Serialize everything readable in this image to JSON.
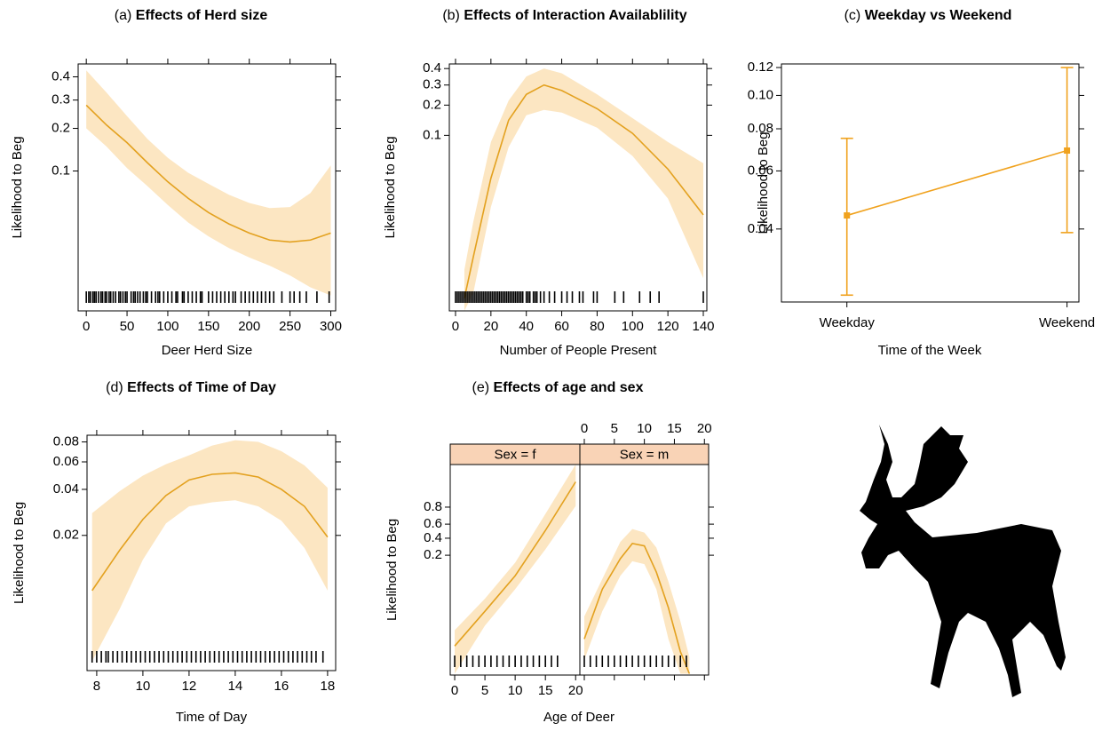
{
  "chart_data": [
    {
      "type": "line",
      "label": "(a)",
      "title": "Effects of Herd size",
      "xlabel": "Deer Herd Size",
      "ylabel": "Likelihood to Beg",
      "yscale": "logit",
      "xlim": [
        -10,
        306
      ],
      "ylim": [
        0.0077,
        0.46
      ],
      "xticks": [
        0,
        50,
        100,
        150,
        200,
        250,
        300
      ],
      "yticks": [
        0.1,
        0.2,
        0.3,
        0.4
      ],
      "color": "#e3a11f",
      "band_color": "#fce6c2",
      "x": [
        0,
        25,
        50,
        75,
        100,
        125,
        150,
        175,
        200,
        225,
        250,
        275,
        300
      ],
      "values": [
        0.28,
        0.21,
        0.16,
        0.115,
        0.083,
        0.062,
        0.048,
        0.039,
        0.033,
        0.029,
        0.028,
        0.029,
        0.033
      ],
      "upper": [
        0.43,
        0.33,
        0.24,
        0.17,
        0.125,
        0.097,
        0.08,
        0.066,
        0.057,
        0.052,
        0.053,
        0.068,
        0.11
      ],
      "lower": [
        0.2,
        0.15,
        0.105,
        0.077,
        0.055,
        0.04,
        0.031,
        0.025,
        0.021,
        0.018,
        0.015,
        0.012,
        0.0103
      ],
      "rug": [
        0,
        3,
        5,
        8,
        10,
        12,
        15,
        18,
        20,
        23,
        25,
        28,
        30,
        33,
        36,
        40,
        42,
        45,
        48,
        50,
        55,
        58,
        60,
        63,
        66,
        70,
        73,
        75,
        80,
        85,
        88,
        90,
        95,
        100,
        105,
        110,
        112,
        118,
        120,
        125,
        130,
        135,
        140,
        142,
        150,
        155,
        160,
        165,
        170,
        175,
        180,
        183,
        190,
        195,
        200,
        205,
        210,
        215,
        220,
        225,
        230,
        240,
        250,
        255,
        262,
        270,
        283,
        298
      ]
    },
    {
      "type": "line",
      "label": "(b)",
      "title": "Effects of Interaction Availablility",
      "xlabel": "Number of People Present",
      "ylabel": "Likelihood to Beg",
      "yscale": "logit",
      "xlim": [
        -3.5,
        142
      ],
      "ylim": [
        0.001,
        0.43
      ],
      "xticks": [
        0,
        20,
        40,
        60,
        80,
        100,
        120,
        140
      ],
      "yticks": [
        0.1,
        0.2,
        0.3,
        0.4
      ],
      "color": "#e3a11f",
      "band_color": "#fce6c2",
      "x": [
        5,
        10,
        20,
        30,
        40,
        50,
        60,
        80,
        100,
        120,
        140
      ],
      "values": [
        0.0014,
        0.0042,
        0.034,
        0.143,
        0.25,
        0.3,
        0.27,
        0.185,
        0.105,
        0.043,
        0.013
      ],
      "upper": [
        0.003,
        0.0107,
        0.085,
        0.22,
        0.35,
        0.4,
        0.37,
        0.25,
        0.15,
        0.085,
        0.05
      ],
      "lower": [
        0.001,
        0.0016,
        0.016,
        0.075,
        0.16,
        0.18,
        0.17,
        0.12,
        0.06,
        0.02,
        0.0024
      ],
      "rug": [
        0,
        1,
        2,
        3,
        4,
        5,
        6,
        7,
        8,
        9,
        10,
        11,
        12,
        13,
        14,
        15,
        16,
        17,
        18,
        19,
        20,
        21,
        22,
        23,
        24,
        25,
        26,
        27,
        28,
        29,
        30,
        31,
        32,
        33,
        34,
        35,
        36,
        37,
        38,
        40,
        41,
        42,
        44,
        45,
        46,
        48,
        50,
        53,
        56,
        60,
        63,
        66,
        70,
        72,
        78,
        80,
        90,
        95,
        104,
        110,
        115,
        140
      ]
    },
    {
      "type": "errorbar",
      "label": "(c)",
      "title": "Weekday vs Weekend",
      "xlabel": "Time of the Week",
      "ylabel": "Likelihood to Beg",
      "yscale": "logit",
      "ylim": [
        0.0238,
        0.1228
      ],
      "yticks": [
        0.04,
        0.06,
        0.08,
        {
          "value": 0.1,
          "label": "0.10"
        },
        0.12
      ],
      "color": "#f0a21e",
      "categories": [
        "Weekday",
        "Weekend"
      ],
      "values": [
        0.044,
        0.069
      ],
      "lower": [
        0.025,
        0.039
      ],
      "upper": [
        0.075,
        0.12
      ]
    },
    {
      "type": "line",
      "label": "(d)",
      "title": "Effects of Time of Day",
      "xlabel": "Time of Day",
      "ylabel": "Likelihood to Beg",
      "yscale": "logit",
      "xlim": [
        7.58,
        18.35
      ],
      "ylim": [
        0.0025,
        0.088
      ],
      "xticks": [
        8,
        10,
        12,
        14,
        16,
        18
      ],
      "yticks": [
        0.02,
        0.04,
        0.06,
        0.08
      ],
      "color": "#e3a11f",
      "band_color": "#fce6c2",
      "x": [
        7.8,
        9,
        10,
        11,
        12,
        13,
        14,
        15,
        16,
        17,
        18
      ],
      "values": [
        0.0086,
        0.016,
        0.0255,
        0.0365,
        0.046,
        0.05,
        0.051,
        0.048,
        0.04,
        0.031,
        0.0195
      ],
      "upper": [
        0.028,
        0.039,
        0.049,
        0.058,
        0.066,
        0.076,
        0.082,
        0.08,
        0.07,
        0.057,
        0.041
      ],
      "lower": [
        0.0029,
        0.0065,
        0.0138,
        0.024,
        0.031,
        0.033,
        0.034,
        0.031,
        0.025,
        0.0165,
        0.0086
      ],
      "rug": [
        7.8,
        8,
        8.2,
        8.4,
        8.5,
        8.7,
        8.9,
        9.1,
        9.3,
        9.5,
        9.7,
        9.9,
        10.1,
        10.3,
        10.5,
        10.7,
        10.9,
        11.1,
        11.3,
        11.5,
        11.7,
        11.9,
        12.1,
        12.3,
        12.5,
        12.7,
        12.9,
        13.1,
        13.3,
        13.5,
        13.7,
        13.9,
        14.1,
        14.3,
        14.5,
        14.7,
        14.9,
        15.1,
        15.3,
        15.5,
        15.7,
        15.9,
        16.1,
        16.3,
        16.5,
        16.7,
        16.9,
        17.1,
        17.3,
        17.5,
        17.8
      ]
    },
    {
      "type": "facets",
      "label": "(e)",
      "title": "Effects of age and sex",
      "xlabel": "Age of Deer",
      "ylabel": "Likelihood to Beg",
      "yscale": "logit",
      "xlim": [
        -0.74,
        20.7
      ],
      "ylim": [
        0.00025,
        0.979
      ],
      "xticks": [
        0,
        5,
        10,
        15,
        20
      ],
      "yticks": [
        0.2,
        0.4,
        0.6,
        0.8
      ],
      "color": "#e3a11f",
      "band_color": "#fce6c2",
      "strip_color": "#f9d3b6",
      "facets": [
        {
          "strip": "Sex = f",
          "x": [
            0,
            5,
            10,
            15,
            20
          ],
          "values": [
            0.00133,
            0.0098,
            0.071,
            0.51,
            0.945
          ],
          "upper": [
            0.0033,
            0.02,
            0.14,
            0.73,
            0.979
          ],
          "lower": [
            0.00027,
            0.0043,
            0.034,
            0.26,
            0.81
          ],
          "rug": [
            0,
            1,
            2,
            3,
            4,
            5,
            6,
            7,
            8,
            9,
            10,
            11,
            12,
            13,
            14,
            15,
            16,
            17
          ]
        },
        {
          "strip": "Sex = m",
          "x": [
            0,
            3,
            6,
            8,
            10,
            12,
            14,
            16,
            17.5
          ],
          "values": [
            0.002,
            0.034,
            0.17,
            0.33,
            0.3,
            0.086,
            0.012,
            0.00096,
            0.00027
          ],
          "upper": [
            0.0073,
            0.06,
            0.35,
            0.53,
            0.48,
            0.28,
            0.052,
            0.0055,
            0.0007
          ],
          "lower": [
            0.0006,
            0.0098,
            0.071,
            0.15,
            0.13,
            0.034,
            0.002,
            0.00027,
            0.00027
          ],
          "rug": [
            0,
            1,
            2,
            3,
            4,
            5,
            6,
            7,
            8,
            9,
            10,
            11,
            12,
            13,
            14,
            15,
            16,
            17
          ]
        }
      ]
    }
  ]
}
